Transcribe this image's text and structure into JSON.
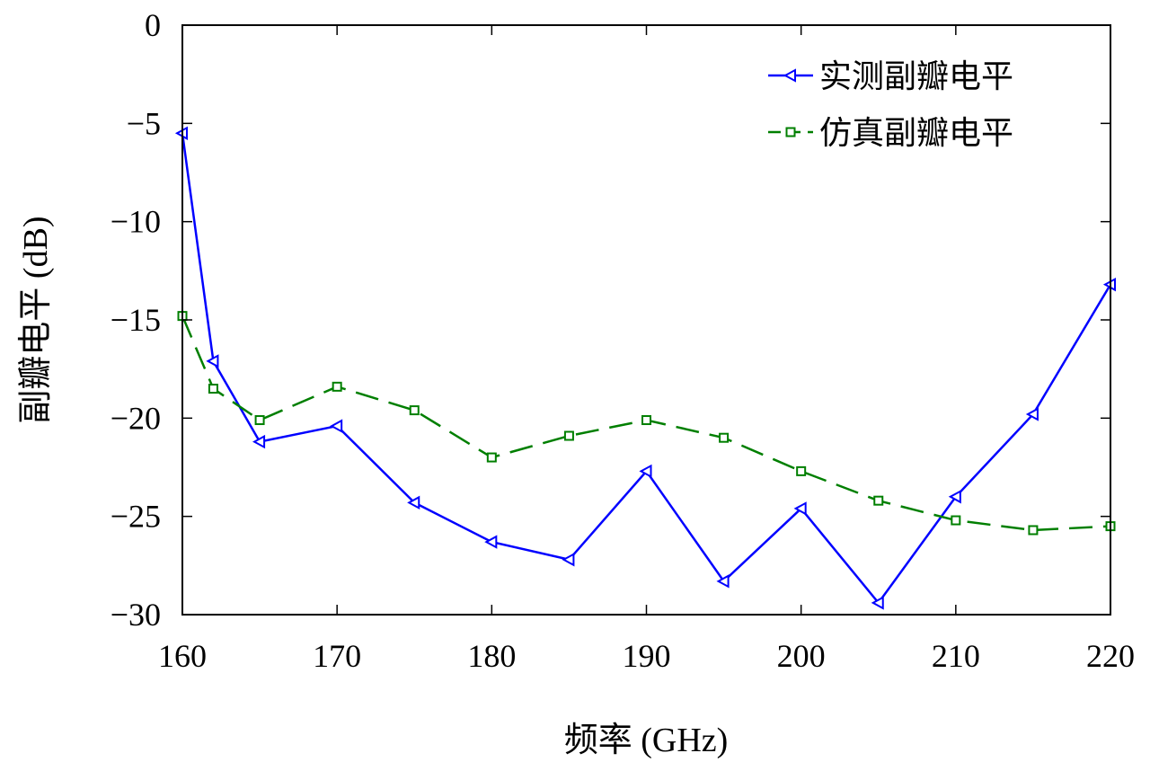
{
  "chart_data": {
    "type": "line",
    "title": "",
    "xlabel": "频率 (GHz)",
    "ylabel": "副瓣电平 (dB)",
    "xlim": [
      160,
      220
    ],
    "ylim": [
      -30,
      0
    ],
    "xticks": [
      160,
      170,
      180,
      190,
      200,
      210,
      220
    ],
    "yticks": [
      0,
      -5,
      -10,
      -15,
      -20,
      -25,
      -30
    ],
    "xtick_labels": [
      "160",
      "170",
      "180",
      "190",
      "200",
      "210",
      "220"
    ],
    "ytick_labels": [
      "0",
      "−5",
      "−10",
      "−15",
      "−20",
      "−25",
      "−30"
    ],
    "grid": false,
    "legend_position": "top-right",
    "series": [
      {
        "name": "实测副瓣电平",
        "color": "#0000ff",
        "style": "solid",
        "marker": "triangle-left",
        "x": [
          160,
          162,
          165,
          170,
          175,
          180,
          185,
          190,
          195,
          200,
          205,
          210,
          215,
          220
        ],
        "values": [
          -5.5,
          -17.1,
          -21.2,
          -20.4,
          -24.3,
          -26.3,
          -27.2,
          -22.7,
          -28.3,
          -24.6,
          -29.4,
          -24.0,
          -19.8,
          -13.2
        ]
      },
      {
        "name": "仿真副瓣电平",
        "color": "#007f00",
        "style": "dashed",
        "marker": "square",
        "x": [
          160,
          162,
          165,
          170,
          175,
          180,
          185,
          190,
          195,
          200,
          205,
          210,
          215,
          220
        ],
        "values": [
          -14.8,
          -18.5,
          -20.1,
          -18.4,
          -19.6,
          -22.0,
          -20.9,
          -20.1,
          -21.0,
          -22.7,
          -24.2,
          -25.2,
          -25.7,
          -25.5
        ]
      }
    ]
  }
}
